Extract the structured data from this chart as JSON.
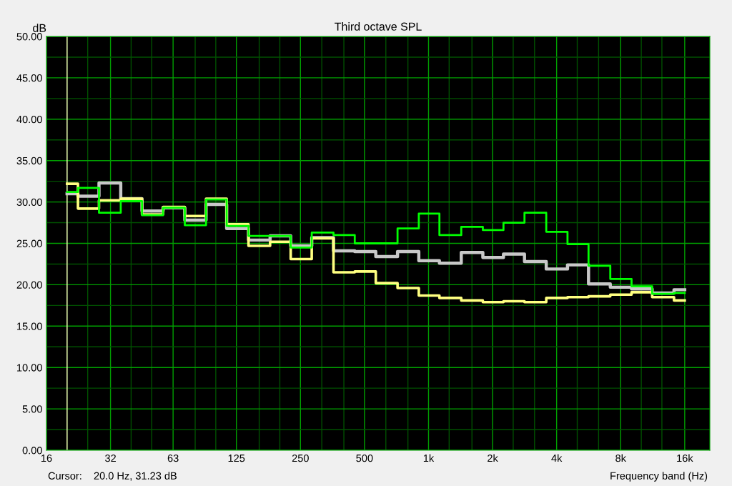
{
  "chart_data": {
    "type": "step",
    "title": "Third octave SPL",
    "xlabel": "Frequency band (Hz)",
    "ylabel": "dB",
    "annotations": [
      "Cursor:",
      "20.0 Hz, 31.23 dB"
    ],
    "x": [
      20,
      25,
      31.5,
      40,
      50,
      63,
      80,
      100,
      125,
      160,
      200,
      250,
      315,
      400,
      500,
      630,
      800,
      1000,
      1250,
      1600,
      2000,
      2500,
      3150,
      4000,
      5000,
      6300,
      8000,
      10000,
      12500,
      16000
    ],
    "series": [
      {
        "color": "#c8c8c8",
        "values": [
          31.0,
          30.7,
          32.3,
          30.4,
          28.9,
          29.3,
          27.8,
          29.7,
          26.8,
          25.4,
          25.9,
          24.7,
          25.7,
          24.1,
          24.0,
          23.4,
          24.0,
          22.9,
          22.6,
          23.9,
          23.3,
          23.7,
          22.8,
          21.9,
          22.4,
          20.1,
          19.7,
          19.5,
          19.0,
          19.4
        ]
      },
      {
        "color": "#ffff80",
        "values": [
          32.2,
          29.2,
          30.2,
          30.4,
          28.5,
          29.4,
          28.3,
          30.4,
          27.3,
          24.7,
          25.2,
          23.1,
          25.6,
          21.5,
          21.6,
          20.2,
          19.6,
          18.7,
          18.4,
          18.1,
          17.9,
          18.0,
          17.9,
          18.4,
          18.5,
          18.6,
          18.8,
          19.1,
          18.5,
          18.1
        ]
      },
      {
        "color": "#00ff00",
        "values": [
          31.2,
          31.7,
          28.7,
          30.1,
          28.4,
          29.3,
          27.2,
          30.3,
          27.1,
          25.9,
          25.9,
          24.5,
          26.3,
          26.0,
          25.0,
          25.0,
          26.8,
          28.6,
          26.0,
          27.0,
          26.6,
          27.5,
          28.7,
          26.4,
          24.9,
          22.3,
          20.7,
          19.8,
          18.9,
          19.0
        ]
      }
    ],
    "log": "x",
    "xlim": [
      16,
      21000
    ],
    "xticks": [
      16,
      {
        "value": 20,
        "label": null
      },
      {
        "value": 25,
        "label": null
      },
      32,
      {
        "value": 40,
        "label": null
      },
      {
        "value": 50,
        "label": null
      },
      63,
      {
        "value": 80,
        "label": null
      },
      {
        "value": 100,
        "label": null
      },
      125,
      {
        "value": 160,
        "label": null
      },
      {
        "value": 200,
        "label": null
      },
      250,
      {
        "value": 315,
        "label": null
      },
      {
        "value": 400,
        "label": null
      },
      500,
      {
        "value": 630,
        "label": null
      },
      {
        "value": 800,
        "label": null
      },
      {
        "value": 1000,
        "label": "1k"
      },
      {
        "value": 1250,
        "label": null
      },
      {
        "value": 1600,
        "label": null
      },
      {
        "value": 2000,
        "label": "2k"
      },
      {
        "value": 2500,
        "label": null
      },
      {
        "value": 3150,
        "label": null
      },
      {
        "value": 4000,
        "label": "4k"
      },
      {
        "value": 5000,
        "label": null
      },
      {
        "value": 6300,
        "label": null
      },
      {
        "value": 8000,
        "label": "8k"
      },
      {
        "value": 10000,
        "label": null
      },
      {
        "value": 12500,
        "label": null
      },
      {
        "value": 16000,
        "label": "16k"
      }
    ],
    "ylim": [
      0,
      50
    ],
    "yticks": [
      {
        "value": 0,
        "label": "0.00"
      },
      {
        "value": 2.5,
        "label": null
      },
      {
        "value": 5,
        "label": "5.00"
      },
      {
        "value": 7.5,
        "label": null
      },
      {
        "value": 10,
        "label": "10.00"
      },
      {
        "value": 12.5,
        "label": null
      },
      {
        "value": 15,
        "label": "15.00"
      },
      {
        "value": 17.5,
        "label": null
      },
      {
        "value": 20,
        "label": "20.00"
      },
      {
        "value": 22.5,
        "label": null
      },
      {
        "value": 25,
        "label": "25.00"
      },
      {
        "value": 27.5,
        "label": null
      },
      {
        "value": 30,
        "label": "30.00"
      },
      {
        "value": 32.5,
        "label": null
      },
      {
        "value": 35,
        "label": "35.00"
      },
      {
        "value": 37.5,
        "label": null
      },
      {
        "value": 40,
        "label": "40.00"
      },
      {
        "value": 42.5,
        "label": null
      },
      {
        "value": 45,
        "label": "45.00"
      },
      {
        "value": 47.5,
        "label": null
      },
      {
        "value": 50,
        "label": "50.00"
      }
    ],
    "grid": true,
    "legend": false,
    "ref_lines": [
      {
        "axis": "x",
        "value": 20,
        "label": null,
        "color": "#ffffc0"
      }
    ]
  }
}
